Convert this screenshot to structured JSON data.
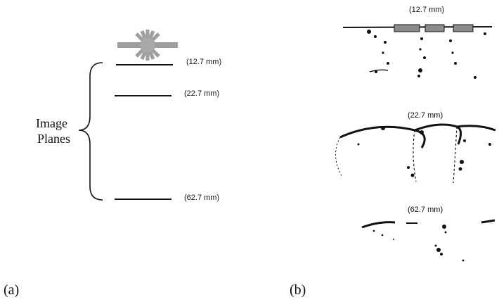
{
  "panel_a": {
    "label": "(a)",
    "group_label_line1": "Image",
    "group_label_line2": "Planes",
    "planes": [
      "(12.7 mm)",
      "(22.7 mm)",
      "(62.7 mm)"
    ]
  },
  "panel_b": {
    "label": "(b)",
    "planes": [
      "(12.7 mm)",
      "(22.7 mm)",
      "(62.7 mm)"
    ]
  },
  "colors": {
    "ink": "#111111",
    "sun_gray": "#9e9e9e",
    "lamp_block": "#8c8c8c",
    "background": "#ffffff"
  },
  "icons": {
    "light_source": "sun-icon"
  }
}
